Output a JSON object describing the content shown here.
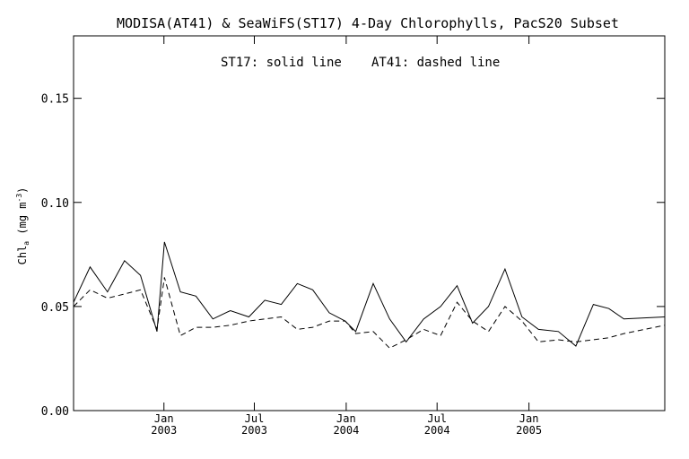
{
  "chart_data": {
    "type": "line",
    "title": "MODISA(AT41) & SeaWiFS(ST17) 4-Day Chlorophylls, PacS20 Subset",
    "annotation": {
      "st17": "ST17: solid line",
      "at41": "AT41: dashed line"
    },
    "ylabel": {
      "pre": "Chl",
      "sub": "a",
      "mid": " (mg m",
      "sup": "-3",
      "post": ")"
    },
    "ylim": [
      0,
      0.18
    ],
    "yticks": [
      {
        "value": 0.0,
        "label": "0.00"
      },
      {
        "value": 0.05,
        "label": "0.05"
      },
      {
        "value": 0.1,
        "label": "0.10"
      },
      {
        "value": 0.15,
        "label": "0.15"
      }
    ],
    "xlim": [
      "2002-07-04",
      "2005-09-30"
    ],
    "xticks": [
      {
        "date": "2003-01-01",
        "month": "Jan",
        "year": "2003"
      },
      {
        "date": "2003-07-01",
        "month": "Jul",
        "year": "2003"
      },
      {
        "date": "2004-01-01",
        "month": "Jan",
        "year": "2004"
      },
      {
        "date": "2004-07-01",
        "month": "Jul",
        "year": "2004"
      },
      {
        "date": "2005-01-01",
        "month": "Jan",
        "year": "2005"
      }
    ],
    "grid": false,
    "series": [
      {
        "name": "ST17",
        "style": "solid",
        "color": "#000000",
        "points": [
          [
            "2002-07-04",
            0.052
          ],
          [
            "2002-08-06",
            0.069
          ],
          [
            "2002-09-10",
            0.057
          ],
          [
            "2002-10-14",
            0.072
          ],
          [
            "2002-11-15",
            0.065
          ],
          [
            "2002-12-18",
            0.038
          ],
          [
            "2003-01-02",
            0.081
          ],
          [
            "2003-02-03",
            0.057
          ],
          [
            "2003-03-06",
            0.055
          ],
          [
            "2003-04-09",
            0.044
          ],
          [
            "2003-05-14",
            0.048
          ],
          [
            "2003-06-20",
            0.045
          ],
          [
            "2003-07-22",
            0.053
          ],
          [
            "2003-08-24",
            0.051
          ],
          [
            "2003-09-25",
            0.061
          ],
          [
            "2003-10-26",
            0.058
          ],
          [
            "2003-11-28",
            0.047
          ],
          [
            "2003-12-30",
            0.043
          ],
          [
            "2004-01-20",
            0.038
          ],
          [
            "2004-02-24",
            0.061
          ],
          [
            "2004-03-28",
            0.044
          ],
          [
            "2004-04-30",
            0.033
          ],
          [
            "2004-06-04",
            0.044
          ],
          [
            "2004-07-08",
            0.05
          ],
          [
            "2004-08-10",
            0.06
          ],
          [
            "2004-09-10",
            0.042
          ],
          [
            "2004-10-12",
            0.05
          ],
          [
            "2004-11-14",
            0.068
          ],
          [
            "2004-12-18",
            0.045
          ],
          [
            "2005-01-20",
            0.039
          ],
          [
            "2005-03-01",
            0.038
          ],
          [
            "2005-04-05",
            0.031
          ],
          [
            "2005-05-10",
            0.051
          ],
          [
            "2005-06-10",
            0.049
          ],
          [
            "2005-07-10",
            0.044
          ],
          [
            "2005-09-30",
            0.045
          ]
        ]
      },
      {
        "name": "AT41",
        "style": "dashed",
        "color": "#000000",
        "points": [
          [
            "2002-07-04",
            0.05
          ],
          [
            "2002-08-06",
            0.058
          ],
          [
            "2002-09-10",
            0.054
          ],
          [
            "2002-10-14",
            0.056
          ],
          [
            "2002-11-15",
            0.058
          ],
          [
            "2002-12-18",
            0.039
          ],
          [
            "2003-01-02",
            0.064
          ],
          [
            "2003-02-03",
            0.036
          ],
          [
            "2003-03-06",
            0.04
          ],
          [
            "2003-04-09",
            0.04
          ],
          [
            "2003-05-14",
            0.041
          ],
          [
            "2003-06-20",
            0.043
          ],
          [
            "2003-07-22",
            0.044
          ],
          [
            "2003-08-24",
            0.045
          ],
          [
            "2003-09-25",
            0.039
          ],
          [
            "2003-10-26",
            0.04
          ],
          [
            "2003-11-28",
            0.043
          ],
          [
            "2003-12-30",
            0.043
          ],
          [
            "2004-01-20",
            0.037
          ],
          [
            "2004-02-24",
            0.038
          ],
          [
            "2004-03-28",
            0.03
          ],
          [
            "2004-04-30",
            0.034
          ],
          [
            "2004-06-04",
            0.039
          ],
          [
            "2004-07-08",
            0.036
          ],
          [
            "2004-08-10",
            0.052
          ],
          [
            "2004-09-10",
            0.043
          ],
          [
            "2004-10-12",
            0.038
          ],
          [
            "2004-11-14",
            0.05
          ],
          [
            "2004-12-18",
            0.043
          ],
          [
            "2005-01-20",
            0.033
          ],
          [
            "2005-03-01",
            0.034
          ],
          [
            "2005-04-05",
            0.033
          ],
          [
            "2005-05-10",
            0.034
          ],
          [
            "2005-06-10",
            0.035
          ],
          [
            "2005-07-10",
            0.037
          ],
          [
            "2005-09-30",
            0.041
          ]
        ]
      }
    ]
  }
}
